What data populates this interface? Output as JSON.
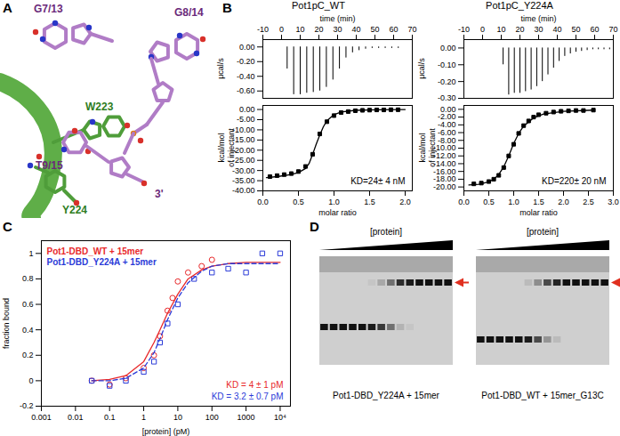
{
  "panels": [
    "A",
    "B",
    "C",
    "D"
  ],
  "structure": {
    "labels": [
      {
        "text": "G7/13",
        "color": "#6b2a7a"
      },
      {
        "text": "G8/14",
        "color": "#6b2a7a"
      },
      {
        "text": "W223",
        "color": "#2e7d1e"
      },
      {
        "text": "T9/15",
        "color": "#6b2a7a"
      },
      {
        "text": "Y224",
        "color": "#2e7d1e"
      },
      {
        "text": "3'",
        "color": "#6b2a7a"
      }
    ]
  },
  "chart_data": [
    {
      "type": "spikes",
      "title": "Pot1pC_WT",
      "xlabel": "time (min)",
      "ylabel": "μcal/s",
      "color": "#000000",
      "x": [
        3,
        6.5,
        10,
        13.5,
        17,
        20.5,
        24,
        27.5,
        31,
        34.5,
        38,
        41.5,
        45,
        48.5,
        52,
        55.5,
        59,
        62.5
      ],
      "values": [
        -0.3,
        -0.65,
        -0.65,
        -0.63,
        -0.62,
        -0.6,
        -0.55,
        -0.45,
        -0.3,
        -0.15,
        -0.08,
        -0.05,
        -0.03,
        -0.02,
        -0.02,
        -0.02,
        -0.02,
        -0.02
      ],
      "xlim": [
        -10,
        70
      ],
      "xticks": [
        -10,
        0,
        10,
        20,
        30,
        40,
        50,
        60,
        70
      ],
      "ylim": [
        -0.7,
        0.1
      ],
      "yticks": [
        {
          "value": 0,
          "label": "0.00"
        },
        {
          "value": -0.2,
          "label": "-0.20"
        },
        {
          "value": -0.4,
          "label": "-0.40"
        },
        {
          "value": -0.6,
          "label": "-0.60"
        }
      ]
    },
    {
      "type": "scatter",
      "xlabel": "molar ratio",
      "ylabel": "kcal/mol\nof injectant",
      "annotations": [
        {
          "text": "KD=24± 4 nM",
          "color": "#000000"
        }
      ],
      "series": [
        {
          "type": "scatter",
          "marker": "square",
          "color": "#000000",
          "x": [
            0.1,
            0.2,
            0.3,
            0.4,
            0.5,
            0.6,
            0.7,
            0.8,
            0.9,
            1.0,
            1.1,
            1.2,
            1.3,
            1.4,
            1.5,
            1.6,
            1.7,
            1.8,
            1.9
          ],
          "values": [
            -33,
            -32.5,
            -32,
            -31.5,
            -30.5,
            -28,
            -22,
            -12,
            -6,
            -3,
            -1.5,
            -1,
            -0.6,
            -0.4,
            -0.3,
            -0.2,
            -0.2,
            -0.1,
            -0.1
          ]
        },
        {
          "type": "line",
          "line_style": "solid",
          "color": "#000000",
          "x": [
            0.05,
            0.2,
            0.4,
            0.5,
            0.6,
            0.65,
            0.7,
            0.75,
            0.8,
            0.85,
            0.9,
            1.0,
            1.1,
            1.3,
            1.6,
            2.0
          ],
          "values": [
            -33.5,
            -33,
            -32,
            -31,
            -29,
            -26.5,
            -22,
            -17,
            -12.5,
            -8.5,
            -5.5,
            -2.5,
            -1.2,
            -0.4,
            -0.1,
            0
          ]
        }
      ],
      "xlim": [
        0,
        2.1
      ],
      "xticks": [
        {
          "value": 0,
          "label": "0.0"
        },
        0.5,
        {
          "value": 1,
          "label": "1.0"
        },
        1.5,
        {
          "value": 2,
          "label": "2.0"
        }
      ],
      "ylim": [
        -40,
        2
      ],
      "yticks": [
        {
          "value": 0,
          "label": "0.00"
        },
        {
          "value": -5,
          "label": "-5.00"
        },
        {
          "value": -10,
          "label": "-10.00"
        },
        {
          "value": -15,
          "label": "-15.00"
        },
        {
          "value": -20,
          "label": "-20.00"
        },
        {
          "value": -25,
          "label": "-25.00"
        },
        {
          "value": -30,
          "label": "-30.00"
        },
        {
          "value": -35,
          "label": "-35.00"
        },
        {
          "value": -40,
          "label": "-40.00"
        }
      ]
    },
    {
      "type": "spikes",
      "title": "Pot1pC_Y224A",
      "xlabel": "time (min)",
      "ylabel": "μcal/s",
      "color": "#000000",
      "x": [
        11,
        14,
        17,
        20,
        23,
        26,
        29,
        32,
        35,
        38,
        41,
        44,
        47,
        50,
        53,
        56,
        59,
        62,
        65,
        68
      ],
      "values": [
        -0.1,
        -0.28,
        -0.27,
        -0.27,
        -0.26,
        -0.25,
        -0.23,
        -0.2,
        -0.16,
        -0.12,
        -0.08,
        -0.05,
        -0.035,
        -0.025,
        -0.02,
        -0.015,
        -0.01,
        -0.01,
        -0.01,
        -0.01
      ],
      "xlim": [
        -10,
        70
      ],
      "xticks": [
        -10,
        0,
        10,
        20,
        30,
        40,
        50,
        60,
        70
      ],
      "ylim": [
        -0.3,
        0.05
      ],
      "yticks": [
        {
          "value": 0,
          "label": "0.00"
        },
        {
          "value": -0.1,
          "label": "-0.10"
        },
        {
          "value": -0.2,
          "label": "-0.20"
        },
        {
          "value": -0.3,
          "label": "-0.30"
        }
      ]
    },
    {
      "type": "scatter",
      "xlabel": "molar ratio",
      "ylabel": "kcal/mol\nof injectant",
      "annotations": [
        {
          "text": "KD=220± 20 nM",
          "color": "#000000"
        }
      ],
      "series": [
        {
          "type": "scatter",
          "marker": "square",
          "color": "#000000",
          "x": [
            0.2,
            0.35,
            0.5,
            0.6,
            0.7,
            0.8,
            0.9,
            1.0,
            1.1,
            1.2,
            1.3,
            1.4,
            1.5,
            1.65,
            1.8,
            1.95,
            2.1,
            2.25,
            2.4,
            2.6
          ],
          "values": [
            -19.2,
            -19,
            -18.6,
            -18,
            -17,
            -15,
            -12,
            -9,
            -6.2,
            -4.2,
            -3,
            -2,
            -1.4,
            -1,
            -0.7,
            -0.5,
            -0.4,
            -0.3,
            -0.3,
            -0.2
          ]
        },
        {
          "type": "line",
          "line_style": "solid",
          "color": "#000000",
          "x": [
            0.1,
            0.3,
            0.5,
            0.6,
            0.7,
            0.8,
            0.9,
            1.0,
            1.1,
            1.2,
            1.4,
            1.6,
            2.0,
            2.6
          ],
          "values": [
            -19.5,
            -19.3,
            -18.7,
            -18,
            -16.8,
            -14.8,
            -12,
            -8.8,
            -6.2,
            -4.3,
            -2.2,
            -1.2,
            -0.5,
            -0.2
          ]
        }
      ],
      "xlim": [
        0,
        3
      ],
      "xticks": [
        {
          "value": 0,
          "label": "0.0"
        },
        0.5,
        {
          "value": 1,
          "label": "1.0"
        },
        1.5,
        {
          "value": 2,
          "label": "2.0"
        },
        2.5,
        {
          "value": 3,
          "label": "3.0"
        }
      ],
      "ylim": [
        -21,
        1
      ],
      "yticks": [
        {
          "value": 0,
          "label": "0.00"
        },
        {
          "value": -2,
          "label": "-2.00"
        },
        {
          "value": -4,
          "label": "-4.00"
        },
        {
          "value": -6,
          "label": "-6.00"
        },
        {
          "value": -8,
          "label": "-8.00"
        },
        {
          "value": -10,
          "label": "-10.00"
        },
        {
          "value": -12,
          "label": "-12.00"
        },
        {
          "value": -14,
          "label": "-14.00"
        },
        {
          "value": -16,
          "label": "-16.00"
        },
        {
          "value": -18,
          "label": "-18.00"
        },
        {
          "value": -20,
          "label": "-20.00"
        }
      ]
    },
    {
      "type": "scatter",
      "xlabel": "[protein] (pM)",
      "ylabel": "fraction bound",
      "log": "x",
      "legend": "top-left",
      "annotations": [
        {
          "text": "KD = 4 ± 1 pM",
          "color": "#e8292b"
        },
        {
          "text": "KD = 3.2 ± 0.7 pM",
          "color": "#2b3bd8"
        }
      ],
      "series": [
        {
          "name": "Pot1-DBD_WT + 15mer",
          "type": "scatter",
          "marker": "open-circle",
          "color": "#e8292b",
          "x": [
            0.03,
            0.1,
            0.3,
            1,
            2,
            3,
            5,
            7,
            10,
            20,
            50,
            100
          ],
          "values": [
            0,
            -0.03,
            0.02,
            0.1,
            0.2,
            0.35,
            0.55,
            0.65,
            0.78,
            0.85,
            0.9,
            0.95
          ]
        },
        {
          "name": "Pot1-DBD_Y224A + 15mer",
          "type": "scatter",
          "marker": "open-square",
          "color": "#2b3bd8",
          "x": [
            0.03,
            0.1,
            0.3,
            1,
            2,
            3,
            5,
            10,
            30,
            100,
            300,
            1000,
            3000,
            10000
          ],
          "values": [
            0,
            -0.04,
            0,
            0.07,
            0.15,
            0.3,
            0.45,
            0.6,
            0.8,
            0.85,
            0.88,
            0.85,
            1.0,
            1.0
          ]
        },
        {
          "type": "line",
          "line_style": "solid",
          "color": "#e8292b",
          "x": [
            0.03,
            0.1,
            0.3,
            1,
            2,
            3,
            5,
            10,
            20,
            50,
            100,
            300,
            1000,
            3000,
            10000
          ],
          "values": [
            0,
            0.01,
            0.04,
            0.15,
            0.3,
            0.4,
            0.53,
            0.68,
            0.8,
            0.87,
            0.9,
            0.92,
            0.93,
            0.93,
            0.93
          ]
        },
        {
          "type": "line",
          "line_style": "dashed",
          "color": "#2b3bd8",
          "x": [
            0.03,
            0.1,
            0.3,
            1,
            2,
            3,
            5,
            10,
            20,
            50,
            100,
            300,
            1000,
            3000,
            10000
          ],
          "values": [
            0,
            0,
            0.02,
            0.1,
            0.22,
            0.33,
            0.48,
            0.65,
            0.77,
            0.86,
            0.9,
            0.92,
            0.92,
            0.92,
            0.92
          ]
        }
      ],
      "xlim": [
        0.001,
        20000
      ],
      "xticks": [
        0.001,
        0.01,
        0.1,
        1,
        10,
        100,
        1000,
        {
          "value": 10000,
          "label": "10⁴"
        }
      ],
      "ylim": [
        -0.2,
        1.1
      ],
      "yticks": [
        -0.2,
        0,
        0.2,
        0.4,
        0.6,
        0.8,
        1
      ]
    }
  ],
  "gels": [
    {
      "header": "[protein]",
      "caption": "Pot1-DBD_Y224A + 15mer",
      "free_band": [
        1,
        1,
        1,
        1,
        1,
        0.95,
        0.8,
        0.5,
        0.15,
        0.05,
        0,
        0,
        0,
        0
      ],
      "bound_band": [
        0,
        0,
        0,
        0,
        0,
        0.05,
        0.2,
        0.5,
        0.85,
        0.95,
        1,
        1,
        1,
        1
      ]
    },
    {
      "header": "[protein]",
      "caption": "Pot1-DBD_WT + 15mer_G13C",
      "free_band": [
        1,
        1,
        1,
        1,
        1,
        0.95,
        0.7,
        0.3,
        0.1,
        0,
        0,
        0,
        0,
        0
      ],
      "bound_band": [
        0,
        0,
        0,
        0,
        0,
        0.1,
        0.35,
        0.7,
        0.9,
        1,
        1,
        1,
        1,
        1
      ]
    }
  ]
}
